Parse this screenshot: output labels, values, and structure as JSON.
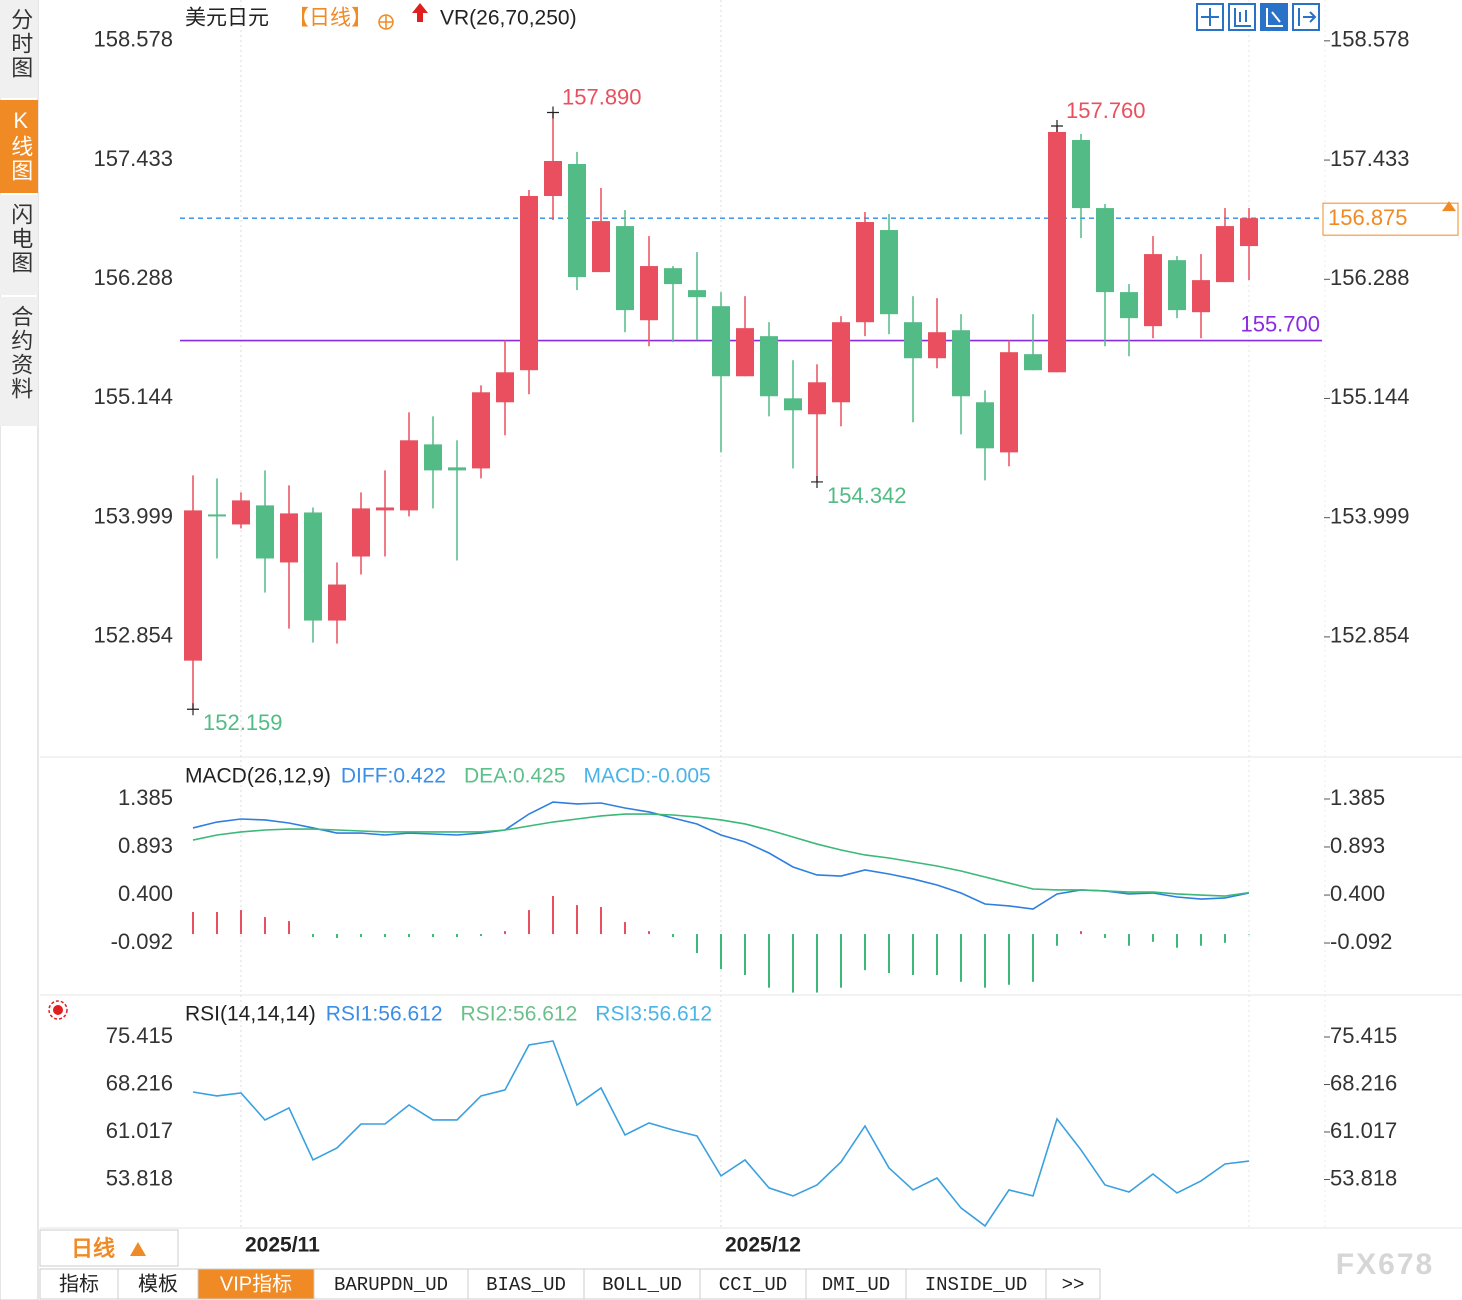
{
  "sidebar": {
    "tabs": [
      "分时图",
      "K线图",
      "闪电图",
      "合约资料"
    ],
    "active": 1
  },
  "chart_data": [
    {
      "type": "candlestick",
      "title": "美元日元",
      "period": "【日线】",
      "indicator": "VR(26,70,250)",
      "categories": [
        null,
        null,
        "2025/11",
        null,
        null,
        null,
        null,
        null,
        null,
        null,
        null,
        null,
        null,
        null,
        null,
        null,
        null,
        null,
        null,
        null,
        null,
        null,
        "2025/12",
        null,
        null,
        null,
        null,
        null,
        null,
        null,
        null,
        null,
        null,
        null,
        null,
        null,
        null,
        null,
        null,
        null,
        null,
        null,
        null,
        null,
        null
      ],
      "open": [
        152.626,
        154.03,
        153.934,
        154.117,
        153.569,
        154.049,
        153.011,
        153.626,
        154.069,
        154.069,
        154.703,
        154.482,
        154.472,
        155.107,
        155.415,
        157.088,
        157.395,
        156.357,
        156.799,
        155.895,
        156.395,
        156.184,
        156.03,
        155.357,
        155.742,
        155.145,
        154.992,
        155.107,
        155.876,
        156.761,
        155.876,
        155.53,
        155.799,
        155.107,
        154.626,
        155.569,
        155.395,
        157.626,
        156.972,
        156.165,
        155.838,
        156.472,
        155.972,
        156.261,
        156.607
      ],
      "high": [
        154.405,
        154.376,
        154.242,
        154.453,
        154.309,
        154.097,
        153.569,
        154.242,
        154.453,
        155.011,
        154.972,
        154.742,
        155.27,
        155.703,
        157.145,
        157.89,
        157.511,
        157.165,
        156.953,
        156.703,
        156.415,
        156.549,
        156.165,
        156.126,
        155.876,
        155.511,
        155.472,
        155.934,
        156.934,
        156.915,
        156.126,
        156.107,
        155.953,
        155.222,
        155.703,
        155.953,
        157.76,
        157.684,
        157.011,
        156.242,
        156.703,
        156.511,
        156.53,
        156.972,
        156.972
      ],
      "low": [
        152.159,
        153.607,
        153.896,
        153.28,
        152.934,
        152.799,
        152.79,
        153.453,
        153.626,
        154.011,
        154.088,
        153.588,
        154.376,
        154.79,
        155.184,
        156.857,
        156.184,
        156.357,
        155.78,
        155.645,
        155.684,
        155.703,
        154.626,
        155.357,
        154.972,
        154.472,
        154.342,
        154.876,
        155.742,
        155.761,
        154.915,
        155.434,
        154.799,
        154.357,
        154.492,
        155.415,
        155.395,
        156.684,
        155.645,
        155.549,
        155.722,
        155.915,
        155.722,
        156.261,
        156.28
      ],
      "close": [
        154.069,
        154.011,
        154.165,
        153.607,
        154.04,
        153.011,
        153.357,
        154.088,
        154.097,
        154.742,
        154.453,
        154.453,
        155.203,
        155.395,
        157.088,
        157.424,
        156.309,
        156.847,
        155.992,
        156.415,
        156.242,
        156.117,
        155.357,
        155.819,
        155.165,
        155.03,
        155.299,
        155.876,
        156.838,
        155.953,
        155.53,
        155.78,
        155.165,
        154.665,
        155.588,
        155.415,
        157.703,
        156.972,
        156.165,
        155.915,
        156.53,
        155.992,
        156.28,
        156.799,
        156.875
      ],
      "high_labels": [
        null,
        null,
        null,
        null,
        null,
        null,
        null,
        null,
        null,
        null,
        null,
        null,
        null,
        null,
        null,
        "157.890",
        null,
        null,
        null,
        null,
        null,
        null,
        null,
        null,
        null,
        null,
        null,
        null,
        null,
        null,
        null,
        null,
        null,
        null,
        null,
        null,
        "157.760",
        null,
        null,
        null,
        null,
        null,
        null,
        null,
        null
      ],
      "low_labels": [
        "152.159",
        null,
        null,
        null,
        null,
        null,
        null,
        null,
        null,
        null,
        null,
        null,
        null,
        null,
        null,
        null,
        null,
        null,
        null,
        null,
        null,
        null,
        null,
        null,
        null,
        null,
        "154.342",
        null,
        null,
        null,
        null,
        null,
        null,
        null,
        null,
        null,
        null,
        null,
        null,
        null,
        null,
        null,
        null,
        null,
        null
      ],
      "up_color": "#e94f5e",
      "down_color": "#52bb86",
      "ylim": [
        151.72,
        158.97
      ],
      "yticks": [
        158.578,
        157.433,
        156.288,
        155.144,
        153.999,
        152.854
      ],
      "hlines": [
        {
          "value": 156.875,
          "color": "#2b8be8",
          "style": "dashed",
          "label_color": "#f08a24"
        },
        {
          "value": 155.7,
          "label": "155.700",
          "color": "#8a2be2",
          "style": "solid"
        }
      ]
    },
    {
      "type": "macd",
      "title": "MACD(26,12,9)",
      "legend": [
        "DIFF:0.422",
        "DEA:0.425",
        "MACD:-0.005"
      ],
      "legend_colors": [
        "#3a8ee6",
        "#5cc08b",
        "#4ab4e8"
      ],
      "series": [
        {
          "type": "line",
          "color": "#2f7fe0",
          "values": [
            1.088,
            1.149,
            1.18,
            1.17,
            1.139,
            1.088,
            1.036,
            1.036,
            1.016,
            1.036,
            1.026,
            1.016,
            1.036,
            1.067,
            1.231,
            1.354,
            1.334,
            1.344,
            1.293,
            1.252,
            1.19,
            1.129,
            1.016,
            0.944,
            0.831,
            0.688,
            0.606,
            0.595,
            0.657,
            0.616,
            0.565,
            0.503,
            0.421,
            0.308,
            0.288,
            0.257,
            0.411,
            0.452,
            0.442,
            0.411,
            0.421,
            0.38,
            0.359,
            0.37,
            0.422
          ]
        },
        {
          "type": "line",
          "color": "#3cb878",
          "values": [
            0.964,
            1.016,
            1.047,
            1.067,
            1.077,
            1.077,
            1.067,
            1.057,
            1.047,
            1.047,
            1.047,
            1.047,
            1.047,
            1.067,
            1.108,
            1.149,
            1.18,
            1.211,
            1.231,
            1.231,
            1.221,
            1.2,
            1.17,
            1.129,
            1.067,
            0.995,
            0.923,
            0.862,
            0.811,
            0.78,
            0.739,
            0.698,
            0.647,
            0.585,
            0.523,
            0.462,
            0.452,
            0.452,
            0.442,
            0.431,
            0.431,
            0.411,
            0.4,
            0.39,
            0.425
          ]
        },
        {
          "type": "bar",
          "up_color": "#e94f5e",
          "down_color": "#3cb878",
          "values": [
            0.226,
            0.226,
            0.246,
            0.174,
            0.133,
            -0.03,
            -0.04,
            -0.03,
            -0.03,
            -0.03,
            -0.03,
            -0.03,
            -0.02,
            0.03,
            0.246,
            0.39,
            0.297,
            0.277,
            0.123,
            0.03,
            -0.03,
            -0.195,
            -0.36,
            -0.42,
            -0.55,
            -0.6,
            -0.6,
            -0.55,
            -0.37,
            -0.4,
            -0.42,
            -0.42,
            -0.49,
            -0.55,
            -0.52,
            -0.49,
            -0.12,
            0.03,
            -0.04,
            -0.12,
            -0.08,
            -0.14,
            -0.12,
            -0.09,
            -0.005
          ]
        }
      ],
      "ylim": [
        -0.625,
        1.785
      ],
      "yticks": [
        1.385,
        0.893,
        {
          "value": 0.4,
          "label": "0.400"
        },
        -0.092
      ]
    },
    {
      "type": "line",
      "title": "RSI(14,14,14)",
      "legend": [
        "RSI1:56.612",
        "RSI2:56.612",
        "RSI3:56.612"
      ],
      "legend_colors": [
        "#3a8ee6",
        "#6cc08b",
        "#4ab4e8"
      ],
      "series": [
        {
          "color": "#3aa0e0",
          "values": [
            67.08,
            66.48,
            66.93,
            62.84,
            64.66,
            56.78,
            58.6,
            62.23,
            62.23,
            65.11,
            62.84,
            62.84,
            66.48,
            67.39,
            74.2,
            74.81,
            65.11,
            67.69,
            60.57,
            62.39,
            61.32,
            60.42,
            54.36,
            56.78,
            52.54,
            51.33,
            52.99,
            56.48,
            61.93,
            55.57,
            52.24,
            54.05,
            49.51,
            46.78,
            52.24,
            51.33,
            63.0,
            58.3,
            52.99,
            51.93,
            54.66,
            51.78,
            53.6,
            56.17,
            56.612
          ]
        }
      ],
      "ylim": [
        46.47,
        81.02
      ],
      "yticks": [
        75.415,
        68.216,
        61.017,
        53.818
      ]
    }
  ],
  "period_button": "日线",
  "tabs": {
    "items": [
      "指标",
      "模板",
      "VIP指标",
      "BARUPDN_UD",
      "BIAS_UD",
      "BOLL_UD",
      "CCI_UD",
      "DMI_UD",
      "INSIDE_UD",
      ">>"
    ],
    "active": 2
  },
  "watermark": "FX678"
}
